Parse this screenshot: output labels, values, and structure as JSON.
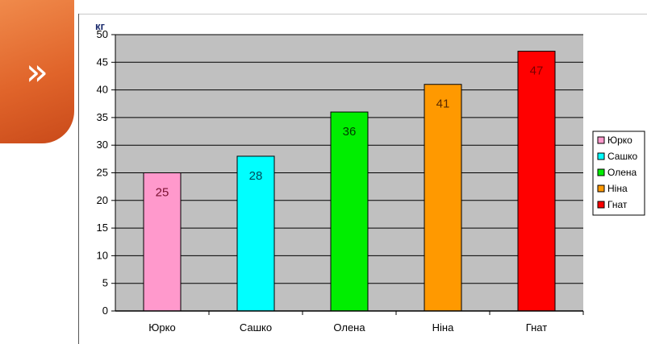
{
  "nav": {
    "icon": "double-chevron-right-icon",
    "glyph": "»"
  },
  "chart_data": {
    "type": "bar",
    "title": "",
    "xlabel": "",
    "ylabel": "кг",
    "categories": [
      "Юрко",
      "Сашко",
      "Олена",
      "Ніна",
      "Гнат"
    ],
    "values": [
      25,
      28,
      36,
      41,
      47
    ],
    "colors": [
      "#ff99cc",
      "#00ffff",
      "#00ee00",
      "#ff9900",
      "#ff0000"
    ],
    "label_colors": [
      "#7a1030",
      "#004a5a",
      "#003a00",
      "#5a2a00",
      "#7a0000"
    ],
    "ylim": [
      0,
      50
    ],
    "yticks": [
      0,
      5,
      10,
      15,
      20,
      25,
      30,
      35,
      40,
      45,
      50
    ],
    "grid": true,
    "plot_background": "#c0c0c0",
    "legend": {
      "placement": "right",
      "entries": [
        "Юрко",
        "Сашко",
        "Олена",
        "Ніна",
        "Гнат"
      ]
    }
  }
}
